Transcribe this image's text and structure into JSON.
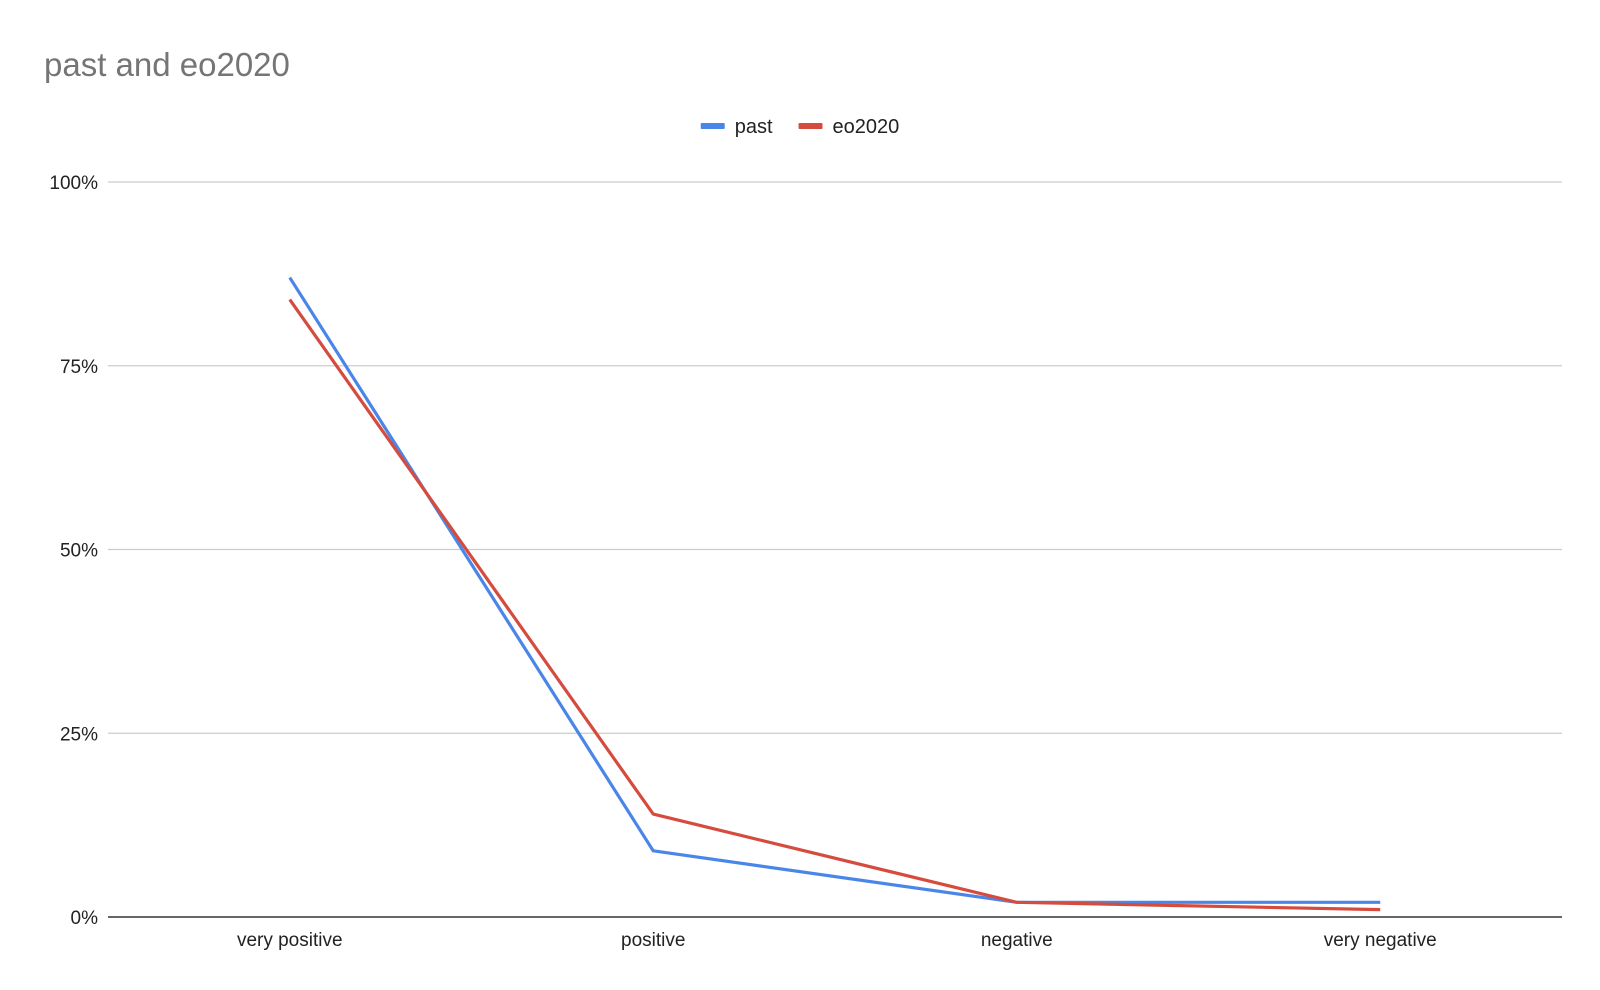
{
  "chart_data": {
    "type": "line",
    "title": "past and eo2020",
    "xlabel": "",
    "ylabel": "",
    "categories": [
      "very positive",
      "positive",
      "negative",
      "very negative"
    ],
    "series": [
      {
        "name": "past",
        "color": "#4a86e8",
        "values": [
          87,
          9,
          2,
          2
        ]
      },
      {
        "name": "eo2020",
        "color": "#d54c3f",
        "values": [
          84,
          14,
          2,
          1
        ]
      }
    ],
    "ylim": [
      0,
      100
    ],
    "yticks": [
      0,
      25,
      50,
      75,
      100
    ],
    "ytick_labels": [
      "0%",
      "25%",
      "50%",
      "75%",
      "100%"
    ],
    "grid": true,
    "legend_position": "top-center"
  }
}
